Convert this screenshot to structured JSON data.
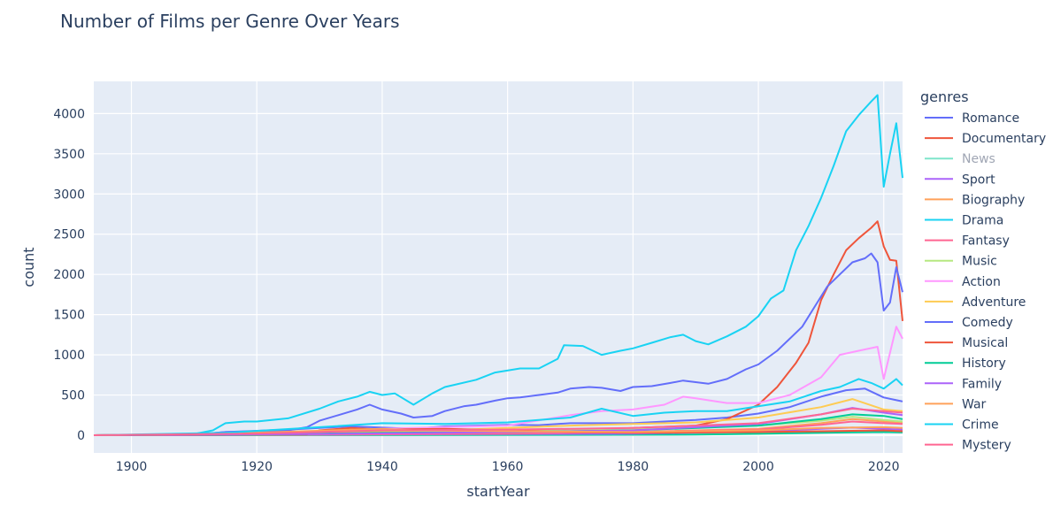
{
  "chart_data": {
    "type": "line",
    "title": "Number of Films per Genre Over Years",
    "xlabel": "startYear",
    "ylabel": "count",
    "xlim": [
      1894,
      2023
    ],
    "ylim": [
      -220,
      4400
    ],
    "xticks": [
      1900,
      1920,
      1940,
      1960,
      1980,
      2000,
      2020
    ],
    "yticks": [
      0,
      500,
      1000,
      1500,
      2000,
      2500,
      3000,
      3500,
      4000
    ],
    "grid": true,
    "legend": {
      "title": "genres",
      "placement": "right"
    },
    "series": [
      {
        "name": "Romance",
        "color": "#636efa",
        "points": [
          [
            1894,
            0
          ],
          [
            1905,
            0
          ],
          [
            1910,
            8
          ],
          [
            1915,
            40
          ],
          [
            1920,
            55
          ],
          [
            1925,
            70
          ],
          [
            1930,
            90
          ],
          [
            1935,
            110
          ],
          [
            1940,
            95
          ],
          [
            1945,
            80
          ],
          [
            1950,
            110
          ],
          [
            1955,
            120
          ],
          [
            1960,
            130
          ],
          [
            1965,
            125
          ],
          [
            1970,
            150
          ],
          [
            1975,
            150
          ],
          [
            1980,
            150
          ],
          [
            1985,
            170
          ],
          [
            1990,
            190
          ],
          [
            1995,
            220
          ],
          [
            2000,
            270
          ],
          [
            2005,
            350
          ],
          [
            2010,
            480
          ],
          [
            2014,
            560
          ],
          [
            2017,
            580
          ],
          [
            2020,
            470
          ],
          [
            2023,
            420
          ]
        ]
      },
      {
        "name": "Documentary",
        "color": "#ef553b",
        "points": [
          [
            1894,
            0
          ],
          [
            1920,
            5
          ],
          [
            1940,
            10
          ],
          [
            1960,
            30
          ],
          [
            1980,
            90
          ],
          [
            1990,
            120
          ],
          [
            1995,
            200
          ],
          [
            2000,
            380
          ],
          [
            2003,
            600
          ],
          [
            2006,
            900
          ],
          [
            2008,
            1150
          ],
          [
            2010,
            1680
          ],
          [
            2012,
            2000
          ],
          [
            2014,
            2300
          ],
          [
            2016,
            2450
          ],
          [
            2018,
            2580
          ],
          [
            2019,
            2660
          ],
          [
            2020,
            2350
          ],
          [
            2021,
            2180
          ],
          [
            2022,
            2170
          ],
          [
            2023,
            1420
          ]
        ]
      },
      {
        "name": "News",
        "color": "#00cc96",
        "points": [
          [
            1894,
            0
          ],
          [
            1950,
            2
          ],
          [
            1990,
            8
          ],
          [
            2000,
            18
          ],
          [
            2010,
            30
          ],
          [
            2015,
            35
          ],
          [
            2020,
            40
          ],
          [
            2023,
            35
          ]
        ]
      },
      {
        "name": "Sport",
        "color": "#ab63fa",
        "points": [
          [
            1894,
            0
          ],
          [
            1920,
            5
          ],
          [
            1950,
            12
          ],
          [
            1980,
            20
          ],
          [
            2000,
            45
          ],
          [
            2010,
            80
          ],
          [
            2015,
            95
          ],
          [
            2020,
            80
          ],
          [
            2023,
            70
          ]
        ]
      },
      {
        "name": "Biography",
        "color": "#ffa15a",
        "points": [
          [
            1894,
            0
          ],
          [
            1930,
            10
          ],
          [
            1960,
            30
          ],
          [
            1980,
            40
          ],
          [
            2000,
            80
          ],
          [
            2010,
            150
          ],
          [
            2015,
            200
          ],
          [
            2020,
            170
          ],
          [
            2023,
            150
          ]
        ]
      },
      {
        "name": "Drama",
        "color": "#19d3f3",
        "points": [
          [
            1894,
            0
          ],
          [
            1905,
            2
          ],
          [
            1910,
            15
          ],
          [
            1913,
            60
          ],
          [
            1915,
            150
          ],
          [
            1918,
            170
          ],
          [
            1920,
            170
          ],
          [
            1925,
            210
          ],
          [
            1930,
            330
          ],
          [
            1933,
            420
          ],
          [
            1936,
            480
          ],
          [
            1938,
            540
          ],
          [
            1940,
            500
          ],
          [
            1942,
            520
          ],
          [
            1945,
            380
          ],
          [
            1948,
            520
          ],
          [
            1950,
            600
          ],
          [
            1955,
            690
          ],
          [
            1958,
            780
          ],
          [
            1962,
            830
          ],
          [
            1965,
            830
          ],
          [
            1968,
            950
          ],
          [
            1969,
            1120
          ],
          [
            1972,
            1110
          ],
          [
            1975,
            1000
          ],
          [
            1978,
            1050
          ],
          [
            1980,
            1080
          ],
          [
            1983,
            1150
          ],
          [
            1986,
            1220
          ],
          [
            1988,
            1250
          ],
          [
            1990,
            1170
          ],
          [
            1992,
            1130
          ],
          [
            1995,
            1230
          ],
          [
            1998,
            1350
          ],
          [
            2000,
            1480
          ],
          [
            2002,
            1700
          ],
          [
            2004,
            1800
          ],
          [
            2006,
            2300
          ],
          [
            2008,
            2600
          ],
          [
            2010,
            2950
          ],
          [
            2012,
            3350
          ],
          [
            2014,
            3780
          ],
          [
            2016,
            3980
          ],
          [
            2018,
            4150
          ],
          [
            2019,
            4230
          ],
          [
            2020,
            3090
          ],
          [
            2021,
            3500
          ],
          [
            2022,
            3880
          ],
          [
            2023,
            3200
          ]
        ]
      },
      {
        "name": "Fantasy",
        "color": "#ff6692",
        "points": [
          [
            1894,
            0
          ],
          [
            1930,
            8
          ],
          [
            1960,
            20
          ],
          [
            1980,
            40
          ],
          [
            2000,
            70
          ],
          [
            2010,
            130
          ],
          [
            2015,
            170
          ],
          [
            2020,
            150
          ],
          [
            2023,
            140
          ]
        ]
      },
      {
        "name": "Music",
        "color": "#b6e880",
        "points": [
          [
            1894,
            0
          ],
          [
            1930,
            40
          ],
          [
            1940,
            60
          ],
          [
            1960,
            60
          ],
          [
            1980,
            80
          ],
          [
            2000,
            120
          ],
          [
            2010,
            180
          ],
          [
            2015,
            230
          ],
          [
            2020,
            190
          ],
          [
            2023,
            170
          ]
        ]
      },
      {
        "name": "Action",
        "color": "#ff97ff",
        "points": [
          [
            1894,
            0
          ],
          [
            1910,
            5
          ],
          [
            1920,
            30
          ],
          [
            1930,
            50
          ],
          [
            1940,
            80
          ],
          [
            1950,
            100
          ],
          [
            1960,
            120
          ],
          [
            1970,
            250
          ],
          [
            1975,
            300
          ],
          [
            1980,
            320
          ],
          [
            1985,
            380
          ],
          [
            1988,
            480
          ],
          [
            1990,
            460
          ],
          [
            1995,
            400
          ],
          [
            2000,
            400
          ],
          [
            2005,
            500
          ],
          [
            2010,
            720
          ],
          [
            2013,
            1000
          ],
          [
            2016,
            1050
          ],
          [
            2019,
            1100
          ],
          [
            2020,
            700
          ],
          [
            2022,
            1350
          ],
          [
            2023,
            1200
          ]
        ]
      },
      {
        "name": "Adventure",
        "color": "#fecb52",
        "points": [
          [
            1894,
            0
          ],
          [
            1920,
            20
          ],
          [
            1930,
            40
          ],
          [
            1950,
            60
          ],
          [
            1970,
            120
          ],
          [
            1980,
            140
          ],
          [
            1990,
            160
          ],
          [
            2000,
            220
          ],
          [
            2010,
            350
          ],
          [
            2015,
            450
          ],
          [
            2020,
            320
          ],
          [
            2023,
            300
          ]
        ]
      },
      {
        "name": "Comedy",
        "color": "#636efa",
        "points": [
          [
            1894,
            0
          ],
          [
            1908,
            5
          ],
          [
            1912,
            20
          ],
          [
            1915,
            40
          ],
          [
            1920,
            50
          ],
          [
            1925,
            60
          ],
          [
            1928,
            100
          ],
          [
            1930,
            180
          ],
          [
            1933,
            250
          ],
          [
            1936,
            320
          ],
          [
            1938,
            380
          ],
          [
            1940,
            320
          ],
          [
            1943,
            270
          ],
          [
            1945,
            220
          ],
          [
            1948,
            240
          ],
          [
            1950,
            300
          ],
          [
            1953,
            360
          ],
          [
            1955,
            380
          ],
          [
            1958,
            430
          ],
          [
            1960,
            460
          ],
          [
            1962,
            470
          ],
          [
            1965,
            500
          ],
          [
            1968,
            530
          ],
          [
            1970,
            580
          ],
          [
            1973,
            600
          ],
          [
            1975,
            590
          ],
          [
            1978,
            550
          ],
          [
            1980,
            600
          ],
          [
            1983,
            610
          ],
          [
            1986,
            650
          ],
          [
            1988,
            680
          ],
          [
            1990,
            660
          ],
          [
            1992,
            640
          ],
          [
            1995,
            700
          ],
          [
            1998,
            820
          ],
          [
            2000,
            880
          ],
          [
            2003,
            1050
          ],
          [
            2005,
            1200
          ],
          [
            2007,
            1350
          ],
          [
            2009,
            1600
          ],
          [
            2011,
            1850
          ],
          [
            2013,
            2000
          ],
          [
            2015,
            2150
          ],
          [
            2017,
            2200
          ],
          [
            2018,
            2260
          ],
          [
            2019,
            2150
          ],
          [
            2020,
            1550
          ],
          [
            2021,
            1650
          ],
          [
            2022,
            2090
          ],
          [
            2023,
            1780
          ]
        ]
      },
      {
        "name": "Musical",
        "color": "#ef553b",
        "points": [
          [
            1894,
            0
          ],
          [
            1928,
            10
          ],
          [
            1930,
            60
          ],
          [
            1935,
            90
          ],
          [
            1940,
            70
          ],
          [
            1950,
            80
          ],
          [
            1960,
            60
          ],
          [
            1970,
            40
          ],
          [
            1980,
            30
          ],
          [
            2000,
            40
          ],
          [
            2010,
            50
          ],
          [
            2020,
            60
          ],
          [
            2023,
            50
          ]
        ]
      },
      {
        "name": "History",
        "color": "#00cc96",
        "points": [
          [
            1894,
            0
          ],
          [
            1920,
            10
          ],
          [
            1940,
            30
          ],
          [
            1960,
            40
          ],
          [
            1980,
            60
          ],
          [
            2000,
            120
          ],
          [
            2010,
            200
          ],
          [
            2015,
            260
          ],
          [
            2020,
            240
          ],
          [
            2023,
            200
          ]
        ]
      },
      {
        "name": "Family",
        "color": "#ab63fa",
        "points": [
          [
            1894,
            0
          ],
          [
            1930,
            15
          ],
          [
            1960,
            40
          ],
          [
            1980,
            60
          ],
          [
            2000,
            140
          ],
          [
            2010,
            260
          ],
          [
            2015,
            340
          ],
          [
            2020,
            280
          ],
          [
            2023,
            250
          ]
        ]
      },
      {
        "name": "War",
        "color": "#ffa15a",
        "points": [
          [
            1894,
            0
          ],
          [
            1915,
            20
          ],
          [
            1940,
            80
          ],
          [
            1945,
            60
          ],
          [
            1960,
            50
          ],
          [
            1980,
            40
          ],
          [
            2000,
            60
          ],
          [
            2010,
            90
          ],
          [
            2020,
            100
          ],
          [
            2023,
            90
          ]
        ]
      },
      {
        "name": "Crime",
        "color": "#19d3f3",
        "points": [
          [
            1894,
            0
          ],
          [
            1915,
            30
          ],
          [
            1930,
            100
          ],
          [
            1940,
            150
          ],
          [
            1950,
            140
          ],
          [
            1960,
            160
          ],
          [
            1970,
            220
          ],
          [
            1975,
            330
          ],
          [
            1980,
            240
          ],
          [
            1985,
            280
          ],
          [
            1990,
            300
          ],
          [
            1995,
            300
          ],
          [
            2000,
            360
          ],
          [
            2005,
            420
          ],
          [
            2010,
            550
          ],
          [
            2013,
            600
          ],
          [
            2016,
            700
          ],
          [
            2018,
            650
          ],
          [
            2020,
            580
          ],
          [
            2022,
            700
          ],
          [
            2023,
            620
          ]
        ]
      },
      {
        "name": "Mystery",
        "color": "#ff6692",
        "points": [
          [
            1894,
            0
          ],
          [
            1920,
            20
          ],
          [
            1940,
            60
          ],
          [
            1960,
            70
          ],
          [
            1980,
            90
          ],
          [
            2000,
            150
          ],
          [
            2010,
            260
          ],
          [
            2015,
            330
          ],
          [
            2020,
            300
          ],
          [
            2023,
            280
          ]
        ]
      }
    ]
  }
}
